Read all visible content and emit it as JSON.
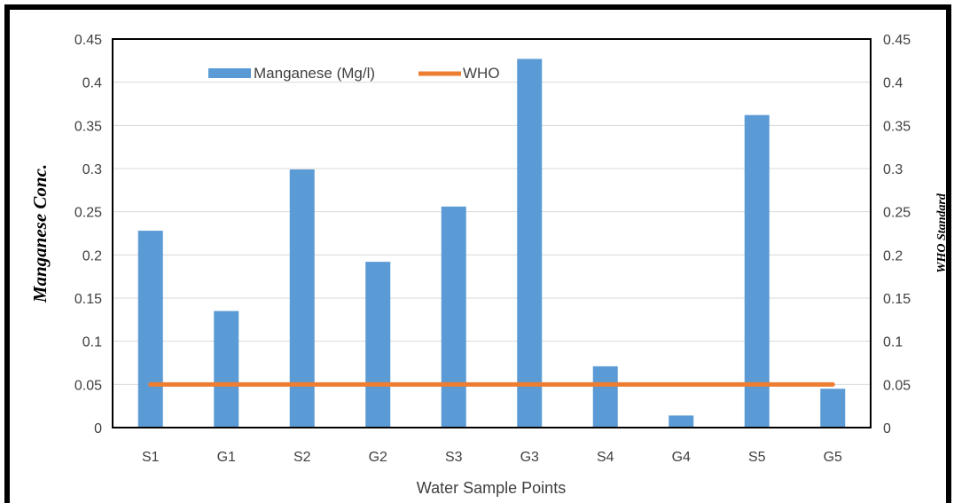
{
  "chart_data": {
    "type": "bar",
    "categories": [
      "S1",
      "G1",
      "S2",
      "G2",
      "S3",
      "G3",
      "S4",
      "G4",
      "S5",
      "G5"
    ],
    "series": [
      {
        "name": "Manganese (Mg/l)",
        "type": "bar",
        "color": "#5b9bd5",
        "values": [
          0.228,
          0.135,
          0.299,
          0.192,
          0.256,
          0.427,
          0.071,
          0.014,
          0.362,
          0.045
        ]
      },
      {
        "name": "WHO",
        "type": "line",
        "color": "#ed7d31",
        "values": [
          0.05,
          0.05,
          0.05,
          0.05,
          0.05,
          0.05,
          0.05,
          0.05,
          0.05,
          0.05
        ]
      }
    ],
    "xlabel": "Water Sample Points",
    "ylabel": "Manganese Conc.",
    "y2label": "WHO Standard",
    "ylim": [
      0,
      0.45
    ],
    "y2lim": [
      0,
      0.45
    ],
    "yticks": [
      "0",
      "0.05",
      "0.1",
      "0.15",
      "0.2",
      "0.25",
      "0.3",
      "0.35",
      "0.4",
      "0.45"
    ],
    "grid": true,
    "legend": "top-center"
  }
}
